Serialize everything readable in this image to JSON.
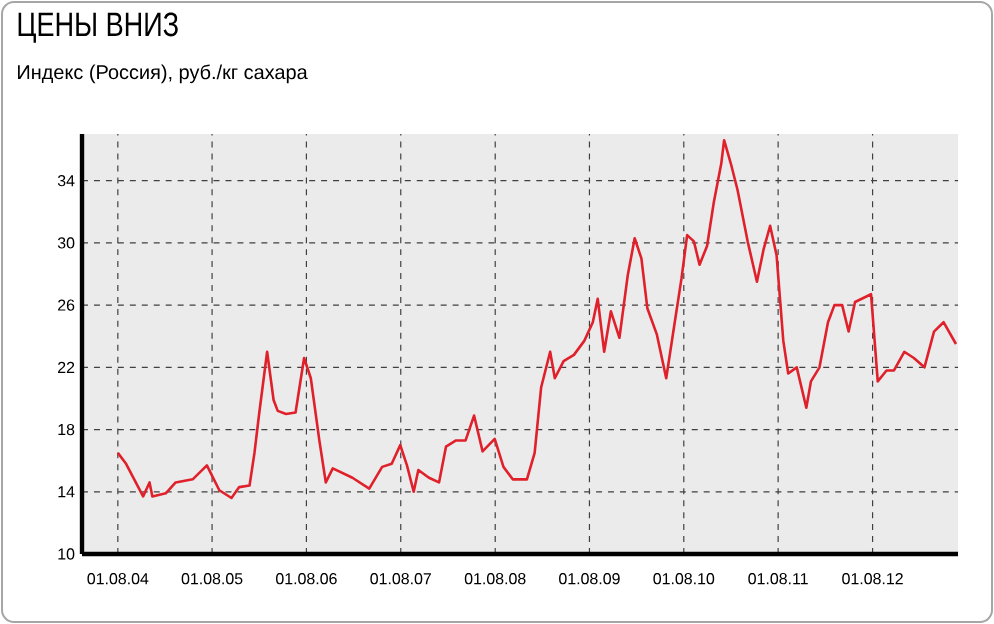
{
  "chart_data": {
    "type": "line",
    "title": "ЦЕНЫ ВНИЗ",
    "subtitle": "Индекс (Россия), руб./кг сахара",
    "x": [
      "2004-08-01",
      "2004-09-02",
      "2004-11-07",
      "2004-12-02",
      "2004-12-13",
      "2005-02-03",
      "2005-03-13",
      "2005-05-18",
      "2005-07-12",
      "2005-08-29",
      "2005-10-15",
      "2005-11-14",
      "2005-12-24",
      "2006-01-12",
      "2006-01-30",
      "2006-03-02",
      "2006-03-27",
      "2006-04-12",
      "2006-05-14",
      "2006-06-20",
      "2006-07-23",
      "2006-08-18",
      "2006-09-20",
      "2006-10-15",
      "2006-11-11",
      "2007-01-26",
      "2007-04-01",
      "2007-05-21",
      "2007-06-27",
      "2007-07-30",
      "2007-08-25",
      "2007-09-20",
      "2007-10-08",
      "2007-11-18",
      "2007-12-27",
      "2008-01-23",
      "2008-03-02",
      "2008-04-08",
      "2008-05-11",
      "2008-06-13",
      "2008-07-30",
      "2008-09-02",
      "2008-10-08",
      "2008-12-02",
      "2009-01-01",
      "2009-01-26",
      "2009-03-02",
      "2009-03-20",
      "2009-04-23",
      "2009-06-02",
      "2009-07-12",
      "2009-08-14",
      "2009-09-02",
      "2009-09-27",
      "2009-10-23",
      "2009-11-25",
      "2009-12-27",
      "2010-01-23",
      "2010-02-18",
      "2010-03-13",
      "2010-04-19",
      "2010-05-25",
      "2010-06-27",
      "2010-07-23",
      "2010-08-14",
      "2010-09-09",
      "2010-10-01",
      "2010-10-30",
      "2010-11-25",
      "2010-12-24",
      "2011-01-04",
      "2011-01-30",
      "2011-02-25",
      "2011-04-05",
      "2011-05-11",
      "2011-06-06",
      "2011-07-01",
      "2011-07-26",
      "2011-08-21",
      "2011-09-09",
      "2011-10-12",
      "2011-11-18",
      "2011-12-06",
      "2012-01-08",
      "2012-02-10",
      "2012-03-06",
      "2012-04-05",
      "2012-04-30",
      "2012-05-25",
      "2012-07-26",
      "2012-08-21",
      "2012-09-24",
      "2012-10-23",
      "2012-12-02",
      "2013-01-08",
      "2013-02-18",
      "2013-03-27",
      "2013-05-03",
      "2013-06-20"
    ],
    "series": [
      {
        "color": "#e0202a",
        "values": [
          16.5,
          15.8,
          13.7,
          14.6,
          13.7,
          13.9,
          14.6,
          14.8,
          15.7,
          14.1,
          13.6,
          14.3,
          14.4,
          16.5,
          19.0,
          23.0,
          19.9,
          19.2,
          19.0,
          19.1,
          22.6,
          21.3,
          17.3,
          14.6,
          15.5,
          14.9,
          14.2,
          15.6,
          15.8,
          17.0,
          15.7,
          14.0,
          15.4,
          14.9,
          14.6,
          16.9,
          17.3,
          17.3,
          18.9,
          16.6,
          17.4,
          15.6,
          14.8,
          14.8,
          16.5,
          20.7,
          23.0,
          21.3,
          22.4,
          22.8,
          23.7,
          24.9,
          26.4,
          23.0,
          25.6,
          23.9,
          27.9,
          30.3,
          29.0,
          25.8,
          24.1,
          21.3,
          24.9,
          27.7,
          30.5,
          30.1,
          28.6,
          29.8,
          32.6,
          35.1,
          36.6,
          35.1,
          33.4,
          30.1,
          27.5,
          29.6,
          31.1,
          29.2,
          23.7,
          21.6,
          22.0,
          19.4,
          21.1,
          22.0,
          24.9,
          26.0,
          26.0,
          24.3,
          26.2,
          26.7,
          21.1,
          21.8,
          21.8,
          23.0,
          22.6,
          22.0,
          24.3,
          24.9,
          23.5
        ]
      }
    ],
    "xlim": [
      "2004-03-15",
      "2013-06-28"
    ],
    "ylim": [
      10,
      37
    ],
    "xticks": [
      {
        "value": "2004-08-01",
        "label": "01.08.04"
      },
      {
        "value": "2005-08-01",
        "label": "01.08.05"
      },
      {
        "value": "2006-08-01",
        "label": "01.08.06"
      },
      {
        "value": "2007-08-01",
        "label": "01.08.07"
      },
      {
        "value": "2008-08-01",
        "label": "01.08.08"
      },
      {
        "value": "2009-08-01",
        "label": "01.08.09"
      },
      {
        "value": "2010-08-01",
        "label": "01.08.10"
      },
      {
        "value": "2011-08-01",
        "label": "01.08.11"
      },
      {
        "value": "2012-08-01",
        "label": "01.08.12"
      }
    ],
    "yticks": [
      10,
      14,
      18,
      22,
      26,
      30,
      34
    ],
    "grid": true
  }
}
